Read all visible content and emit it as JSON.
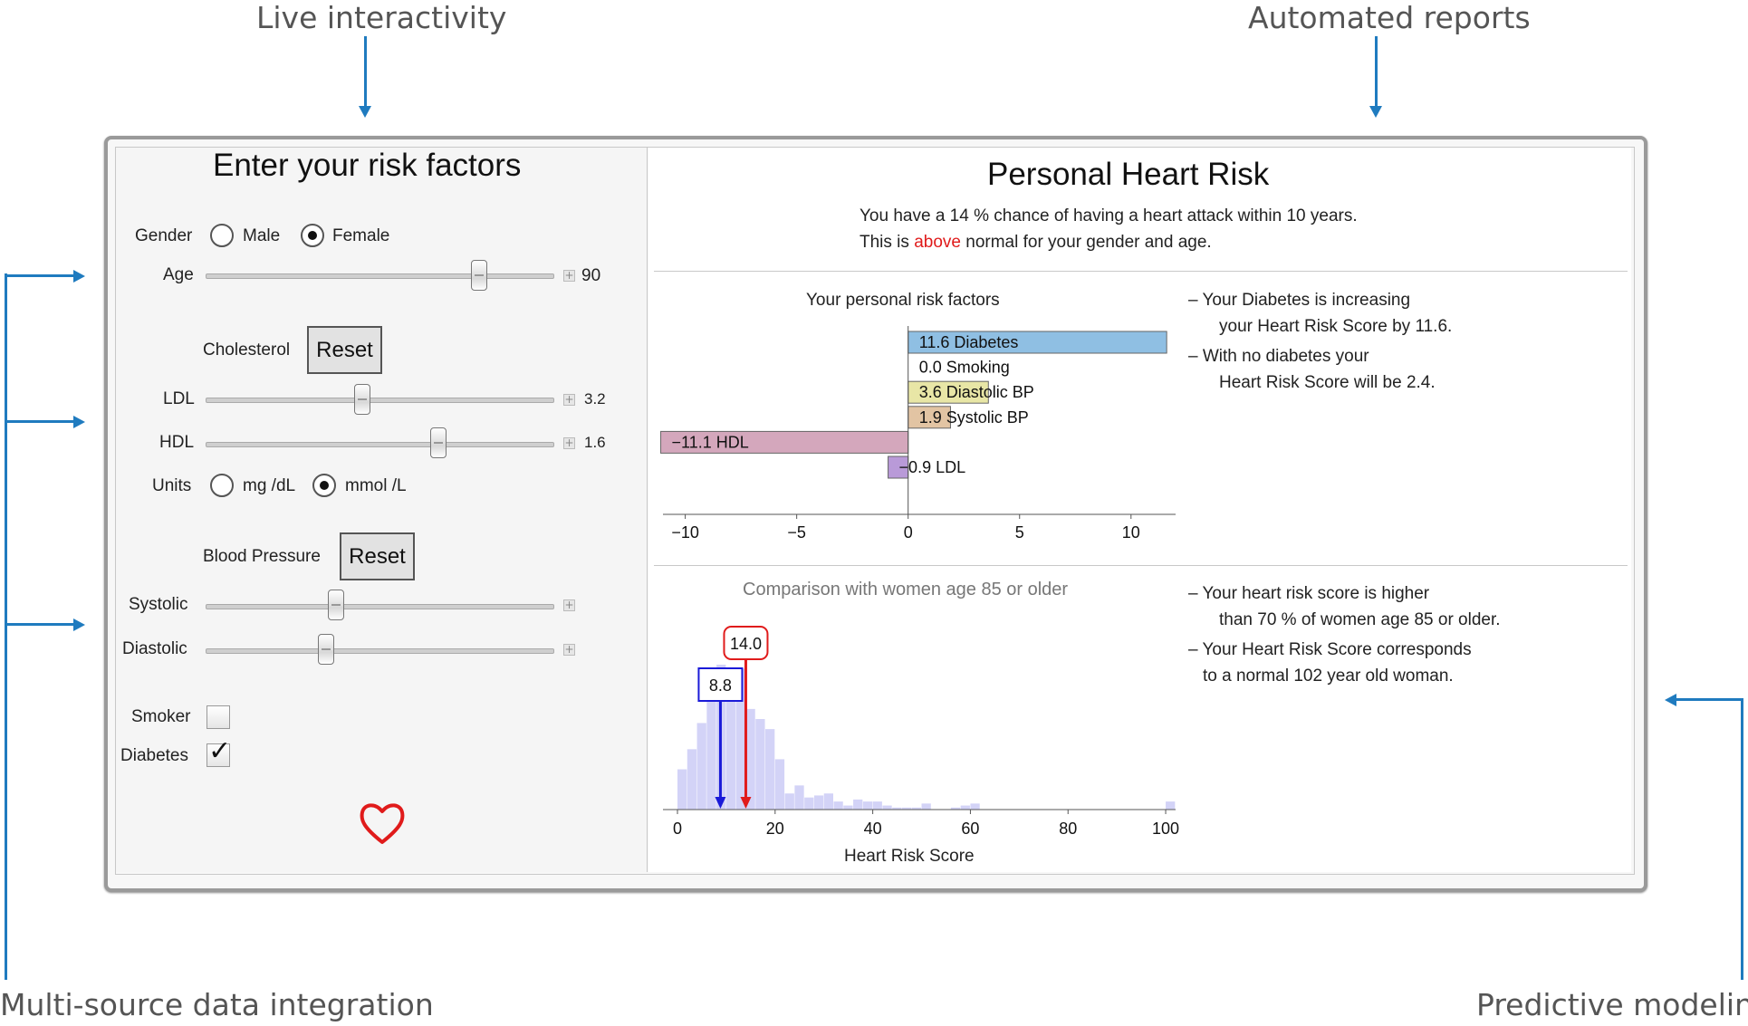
{
  "callouts": {
    "live": "Live interactivity",
    "reports": "Automated reports",
    "multisource": "Multi-source data integration",
    "predictive": "Predictive modeling"
  },
  "form": {
    "title": "Enter your risk factors",
    "gender_label": "Gender",
    "gender_options": [
      "Male",
      "Female"
    ],
    "gender_selected": "Female",
    "age_label": "Age",
    "age_value": "90",
    "cholesterol_label": "Cholesterol",
    "reset_label": "Reset",
    "ldl_label": "LDL",
    "ldl_value": "3.2",
    "hdl_label": "HDL",
    "hdl_value": "1.6",
    "units_label": "Units",
    "unit_options": [
      "mg /dL",
      "mmol /L"
    ],
    "unit_selected": "mmol /L",
    "bp_label": "Blood Pressure",
    "systolic_label": "Systolic",
    "diastolic_label": "Diastolic",
    "smoker_label": "Smoker",
    "smoker_checked": false,
    "diabetes_label": "Diabetes",
    "diabetes_checked": true,
    "slider_levels": {
      "age": 0.78,
      "ldl": 0.45,
      "hdl": 0.67,
      "systolic": 0.38,
      "diastolic": 0.35
    }
  },
  "report": {
    "title": "Personal Heart Risk",
    "line1_pre": "You have a",
    "chance": "14",
    "line1_post": "% chance of having a heart attack within 10 years.",
    "line2_pre": "This is",
    "status": "above",
    "line2_post": "normal for your gender and age."
  },
  "notes_factors": [
    "– Your Diabetes is increasing",
    "your Heart Risk Score by 11.6.",
    "– With no diabetes  your",
    "Heart Risk Score will be 2.4."
  ],
  "notes_comparison": [
    "– Your  heart risk score  is  higher",
    "than  70 %  of  women  age  85  or  older.",
    "–  Your  Heart  Risk  Score  corresponds",
    "to  a  normal  102  year  old  woman."
  ],
  "chart_data": [
    {
      "type": "bar",
      "orientation": "horizontal",
      "title": "Your personal risk factors",
      "categories": [
        "Diabetes",
        "Smoking",
        "Diastolic BP",
        "Systolic BP",
        "HDL",
        "LDL"
      ],
      "values": [
        11.6,
        0.0,
        3.6,
        1.9,
        -11.1,
        -0.9
      ],
      "colors": [
        "#8fbfe3",
        "#ffffff",
        "#e8e6a6",
        "#e2c4a3",
        "#d4a7bc",
        "#b99ad8"
      ],
      "xlim": [
        -11,
        12
      ],
      "xticks": [
        -10,
        -5,
        0,
        5,
        10
      ],
      "grid": false
    },
    {
      "type": "bar",
      "subtype": "histogram",
      "title": "Comparison with women age 85 or older",
      "xlabel": "Heart Risk Score",
      "xlim": [
        0,
        105
      ],
      "xticks": [
        0,
        20,
        40,
        60,
        80,
        100
      ],
      "bin_width": 2,
      "bin_starts": [
        0,
        2,
        4,
        6,
        8,
        10,
        12,
        14,
        16,
        18,
        20,
        22,
        24,
        26,
        28,
        30,
        32,
        34,
        36,
        38,
        40,
        42,
        44,
        46,
        48,
        50,
        52,
        54,
        56,
        58,
        60,
        62,
        64,
        66,
        68,
        70,
        72,
        74,
        76,
        78,
        80,
        82,
        84,
        86,
        88,
        90,
        92,
        94,
        96,
        98,
        100
      ],
      "counts": [
        20,
        30,
        43,
        60,
        72,
        70,
        70,
        50,
        45,
        40,
        25,
        8,
        12,
        6,
        7,
        8,
        4,
        2,
        5,
        4,
        4,
        2,
        1,
        1,
        1,
        3,
        0,
        0,
        1,
        2,
        3,
        0,
        0,
        0,
        0,
        0,
        0,
        0,
        0,
        0,
        0,
        0,
        0,
        0,
        0,
        0,
        0,
        0,
        0,
        0,
        4
      ],
      "markers": [
        {
          "label": "8.8",
          "value": 8.8,
          "color": "#1a1ad8"
        },
        {
          "label": "14.0",
          "value": 14.0,
          "color": "#e01b1b"
        }
      ],
      "bar_color": "#d3d3f7",
      "grid": false
    }
  ]
}
